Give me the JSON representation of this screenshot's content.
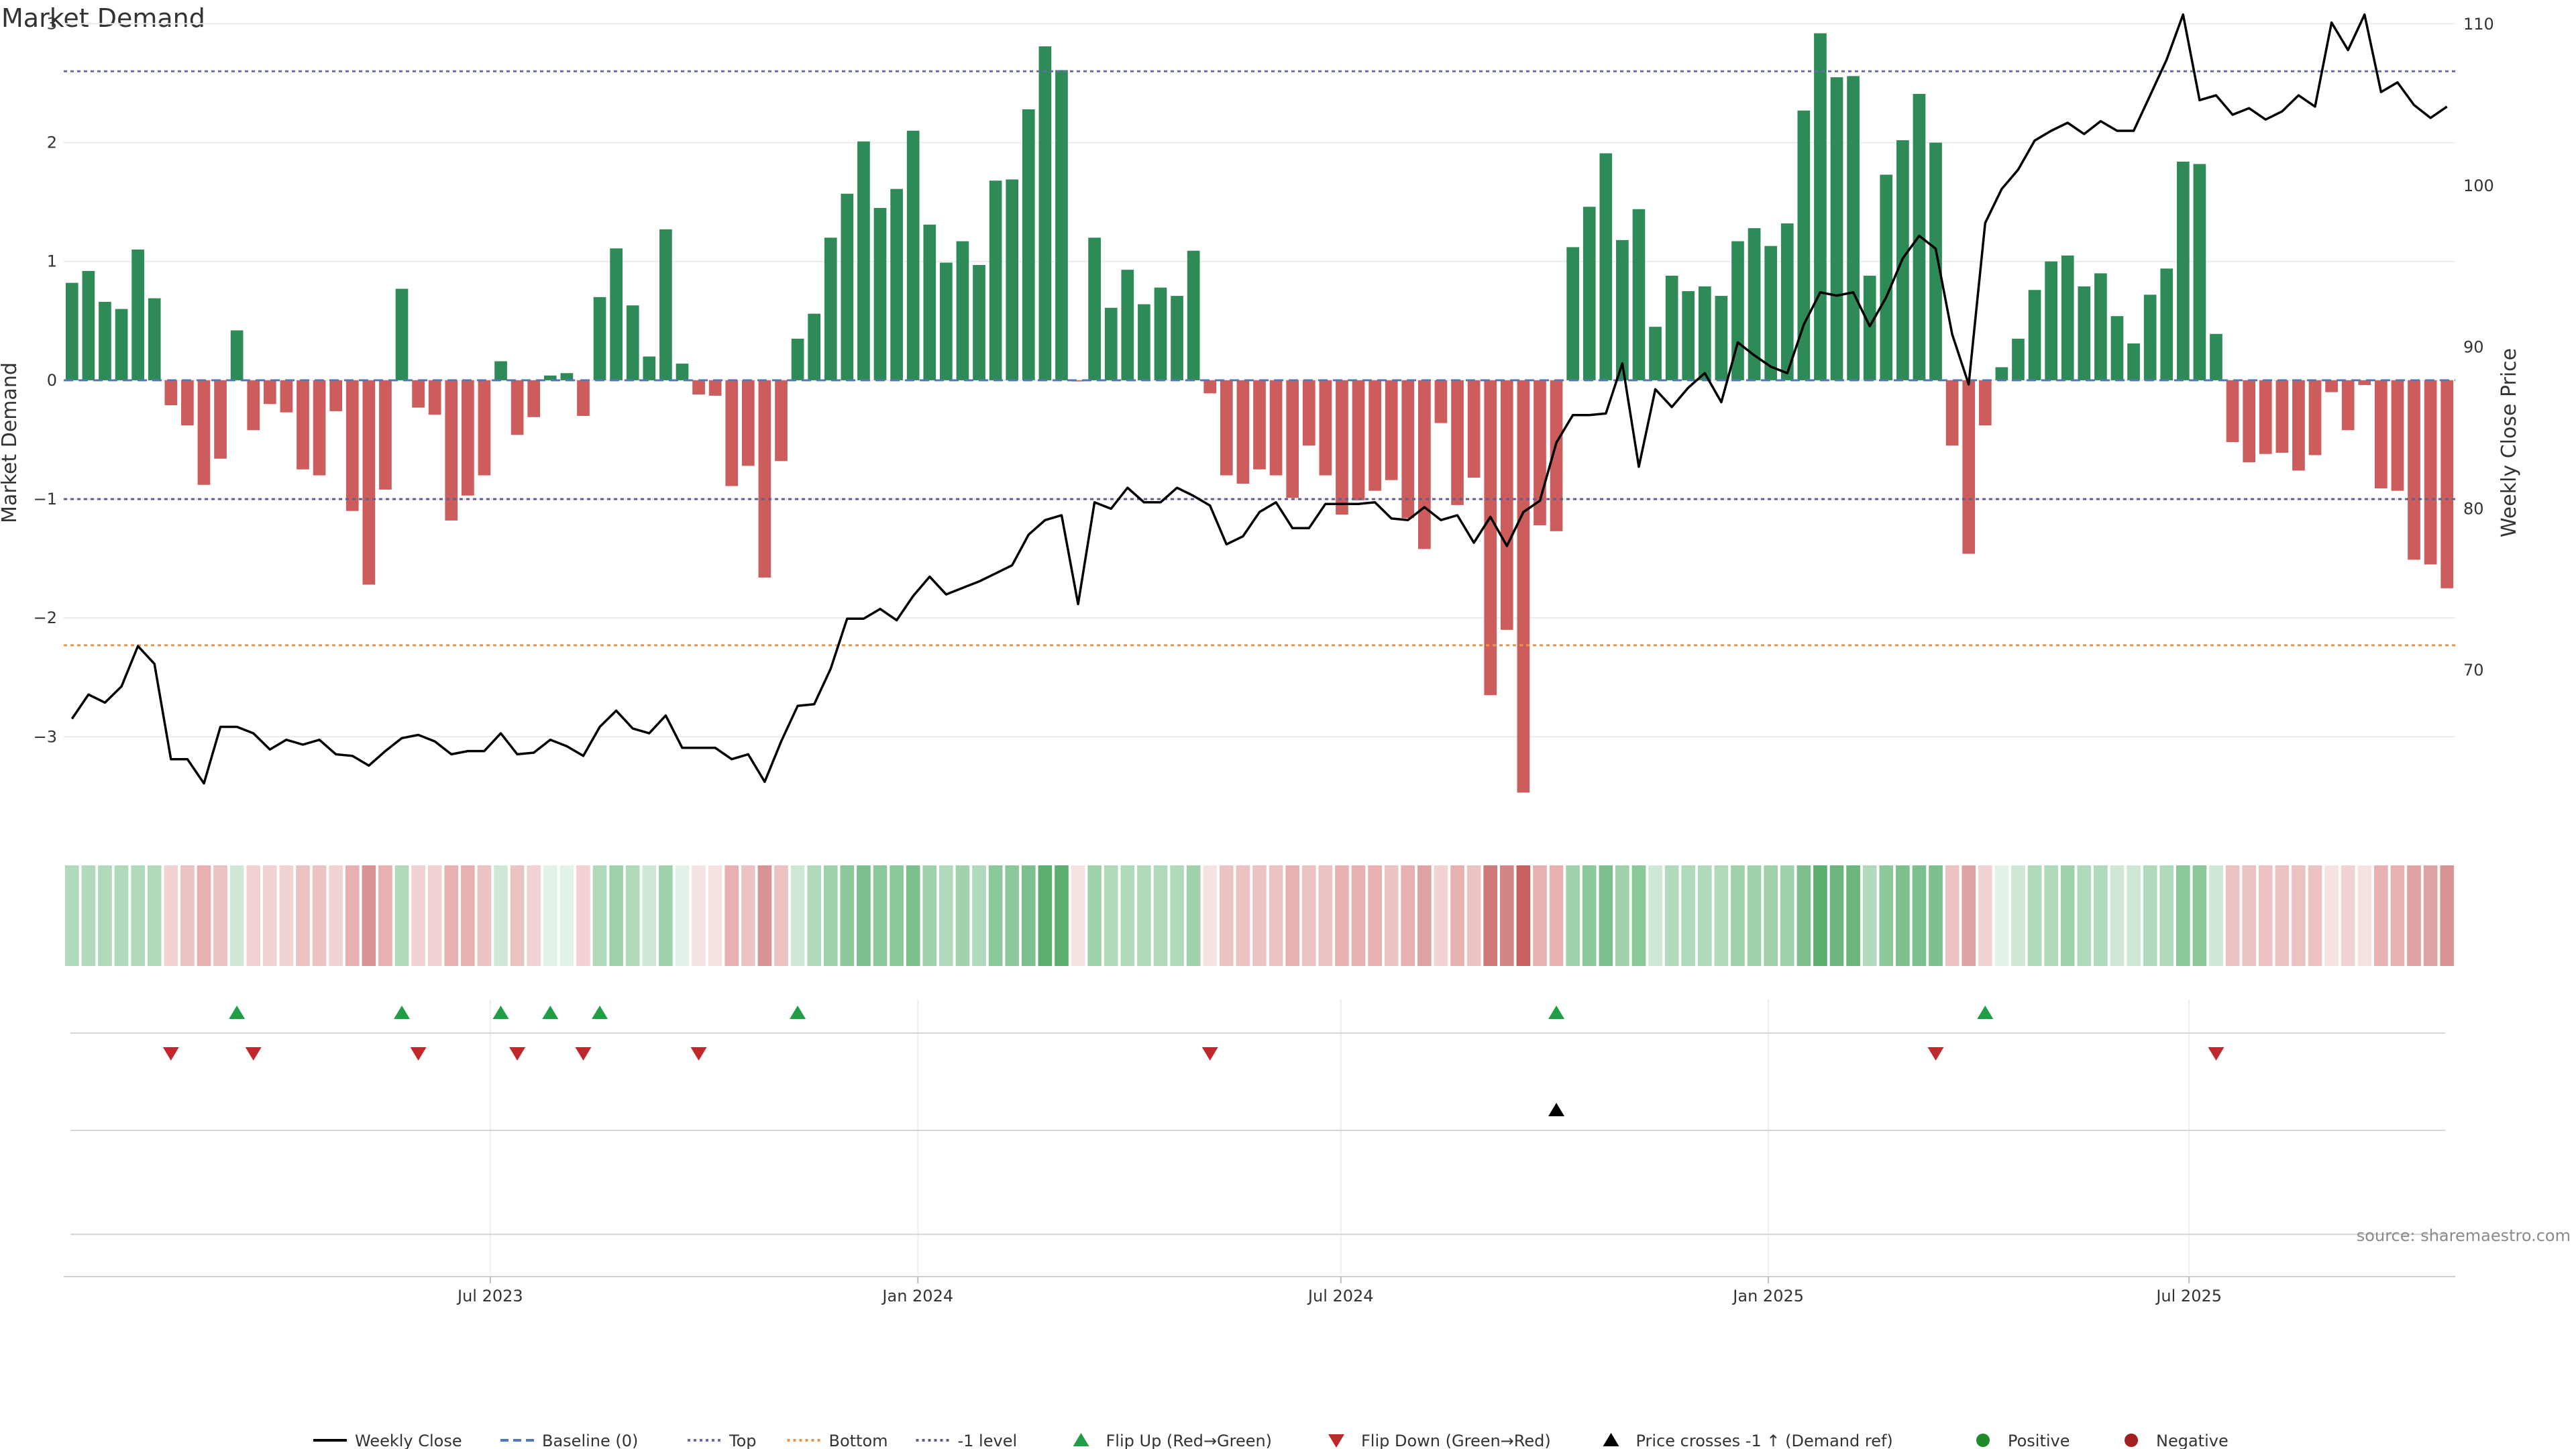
{
  "chart_data": {
    "type": "bar",
    "title": "Market Demand",
    "ylabel": "Market Demand",
    "y2label": "Weekly Close Price",
    "ylim": [
      -3.8,
      3.2
    ],
    "y2lim": [
      60,
      111.5
    ],
    "yticks": [
      3,
      2,
      1,
      0,
      -1,
      -2,
      -3
    ],
    "y2ticks": [
      110,
      100,
      90,
      80,
      70
    ],
    "x_start": "2023-01-02",
    "x_end": "2025-10-20",
    "x_ticks": [
      {
        "date": "2023-07-01",
        "label": "Jul 2023"
      },
      {
        "date": "2024-01-01",
        "label": "Jan 2024"
      },
      {
        "date": "2024-07-01",
        "label": "Jul 2024"
      },
      {
        "date": "2025-01-01",
        "label": "Jan 2025"
      },
      {
        "date": "2025-07-01",
        "label": "Jul 2025"
      }
    ],
    "reference_lines": [
      {
        "name": "Baseline (0)",
        "value": 0,
        "color": "#4f79b8",
        "dash": "dashed"
      },
      {
        "name": "Top",
        "value": 2.6,
        "color": "#6b6bb0",
        "dash": "dotted"
      },
      {
        "name": "Bottom",
        "value": -2.23,
        "color": "#e8954a",
        "dash": "dotted"
      },
      {
        "name": "-1 level",
        "value": -1,
        "color": "#5e5e8f",
        "dash": "dotted"
      }
    ],
    "colors": {
      "positive": "#2e8b57",
      "negative": "#cd5c5c",
      "price_line": "#000000",
      "flip_up": "#1f9e46",
      "flip_down": "#c0282c",
      "price_cross": "#000000",
      "grid": "#ececec"
    },
    "demand": [
      0.82,
      0.92,
      0.66,
      0.6,
      1.1,
      0.69,
      -0.21,
      -0.38,
      -0.88,
      -0.66,
      0.42,
      -0.42,
      -0.2,
      -0.27,
      -0.75,
      -0.8,
      -0.26,
      -1.1,
      -1.72,
      -0.92,
      0.77,
      -0.23,
      -0.29,
      -1.18,
      -0.97,
      -0.8,
      0.16,
      -0.46,
      -0.31,
      0.04,
      0.06,
      -0.3,
      0.7,
      1.11,
      0.63,
      0.2,
      1.27,
      0.14,
      -0.12,
      -0.13,
      -0.89,
      -0.72,
      -1.66,
      -0.68,
      0.35,
      0.56,
      1.2,
      1.57,
      2.01,
      1.45,
      1.61,
      2.1,
      1.31,
      0.99,
      1.17,
      0.97,
      1.68,
      1.69,
      2.28,
      2.81,
      2.61,
      -0.01,
      1.2,
      0.61,
      0.93,
      0.64,
      0.78,
      0.71,
      1.09,
      -0.11,
      -0.8,
      -0.87,
      -0.75,
      -0.8,
      -0.99,
      -0.55,
      -0.8,
      -1.13,
      -1.01,
      -0.93,
      -0.84,
      -1.16,
      -1.42,
      -0.36,
      -1.05,
      -0.82,
      -2.65,
      -2.1,
      -3.47,
      -1.22,
      -1.27,
      1.12,
      1.46,
      1.91,
      1.18,
      1.44,
      0.45,
      0.88,
      0.75,
      0.79,
      0.71,
      1.17,
      1.28,
      1.13,
      1.32,
      2.27,
      2.92,
      2.55,
      2.56,
      0.88,
      1.73,
      2.02,
      2.41,
      2.0,
      -0.55,
      -1.46,
      -0.38,
      0.11,
      0.35,
      0.76,
      1.0,
      1.05,
      0.79,
      0.9,
      0.54,
      0.31,
      0.72,
      0.94,
      1.84,
      1.82,
      0.39,
      -0.52,
      -0.69,
      -0.62,
      -0.61,
      -0.76,
      -0.63,
      -0.1,
      -0.42,
      -0.04,
      -0.91,
      -0.93,
      -1.51,
      -1.55,
      -1.75
    ],
    "price": [
      67.0,
      68.5,
      68.0,
      69.0,
      71.5,
      70.4,
      64.5,
      64.5,
      63.0,
      66.5,
      66.5,
      66.1,
      65.1,
      65.7,
      65.4,
      65.7,
      64.8,
      64.7,
      64.1,
      65.0,
      65.8,
      66.0,
      65.6,
      64.8,
      65.0,
      65.0,
      66.1,
      64.8,
      64.9,
      65.7,
      65.3,
      64.7,
      66.5,
      67.5,
      66.4,
      66.1,
      67.2,
      65.2,
      65.2,
      65.2,
      64.5,
      64.8,
      63.1,
      65.6,
      67.8,
      67.9,
      70.1,
      73.2,
      73.2,
      73.8,
      73.1,
      74.6,
      75.8,
      74.7,
      75.1,
      75.5,
      76.0,
      76.5,
      78.4,
      79.3,
      79.6,
      74.1,
      80.4,
      80.0,
      81.3,
      80.4,
      80.4,
      81.3,
      80.8,
      80.2,
      77.8,
      78.3,
      79.8,
      80.4,
      78.8,
      78.8,
      80.3,
      80.3,
      80.3,
      80.4,
      79.4,
      79.3,
      80.1,
      79.3,
      79.6,
      77.9,
      79.5,
      77.7,
      79.8,
      80.5,
      84.1,
      85.8,
      85.8,
      85.9,
      89.0,
      82.6,
      87.4,
      86.3,
      87.5,
      88.4,
      86.6,
      90.3,
      89.5,
      88.8,
      88.4,
      91.4,
      93.4,
      93.2,
      93.4,
      91.3,
      93.1,
      95.5,
      96.9,
      96.1,
      90.8,
      87.7,
      97.7,
      99.8,
      101.0,
      102.8,
      103.4,
      103.9,
      103.2,
      104.0,
      103.4,
      103.4,
      105.6,
      107.8,
      110.6,
      105.3,
      105.6,
      104.4,
      104.8,
      104.1,
      104.6,
      105.6,
      104.9,
      110.1,
      108.4,
      110.6,
      105.8,
      106.4,
      105.0,
      104.2,
      104.9
    ],
    "strip_colors": [
      "#b1d9bb",
      "#b1d9bb",
      "#b1d9bb",
      "#b1d9bb",
      "#b1d9bb",
      "#b1d9bb",
      "#f0d3d2",
      "#ebc3c2",
      "#e6b1b0",
      "#ebc3c2",
      "#cfe8d5",
      "#f0d3d2",
      "#f0d3d2",
      "#f0d3d2",
      "#ebc3c2",
      "#ebc3c2",
      "#f0d3d2",
      "#e6b1b0",
      "#d99596",
      "#e6b1b0",
      "#b1d9bb",
      "#f0d3d2",
      "#f0d3d2",
      "#e6b1b0",
      "#e6b1b0",
      "#ebc3c2",
      "#cfe8d5",
      "#ebc3c2",
      "#f0d3d2",
      "#e2f2e6",
      "#e2f2e6",
      "#f0d3d2",
      "#b1d9bb",
      "#9fd1ab",
      "#b1d9bb",
      "#cfe8d5",
      "#9fd1ab",
      "#e2f2e6",
      "#f5e3e2",
      "#f5e3e2",
      "#e6b1b0",
      "#ebc3c2",
      "#d99596",
      "#ebc3c2",
      "#cfe8d5",
      "#b1d9bb",
      "#9fd1ab",
      "#8bc89a",
      "#7ebf8e",
      "#8bc89a",
      "#8bc89a",
      "#7ebf8e",
      "#9fd1ab",
      "#b1d9bb",
      "#9fd1ab",
      "#b1d9bb",
      "#8bc89a",
      "#8bc89a",
      "#7ebf8e",
      "#5cae70",
      "#5cae70",
      "#f5e3e2",
      "#9fd1ab",
      "#b1d9bb",
      "#b1d9bb",
      "#b1d9bb",
      "#b1d9bb",
      "#b1d9bb",
      "#9fd1ab",
      "#f5e3e2",
      "#ebc3c2",
      "#ebc3c2",
      "#ebc3c2",
      "#ebc3c2",
      "#e6b1b0",
      "#ebc3c2",
      "#ebc3c2",
      "#e6b1b0",
      "#e6b1b0",
      "#e6b1b0",
      "#ebc3c2",
      "#e6b1b0",
      "#dea3a3",
      "#f0d3d2",
      "#e6b1b0",
      "#ebc3c2",
      "#cf7a7a",
      "#d38484",
      "#c7625f",
      "#e6b1b0",
      "#e6b1b0",
      "#9fd1ab",
      "#8bc89a",
      "#7ebf8e",
      "#9fd1ab",
      "#8bc89a",
      "#cfe8d5",
      "#b1d9bb",
      "#b1d9bb",
      "#b1d9bb",
      "#b1d9bb",
      "#9fd1ab",
      "#9fd1ab",
      "#9fd1ab",
      "#9fd1ab",
      "#7ebf8e",
      "#5cae70",
      "#6cb57f",
      "#6cb57f",
      "#b1d9bb",
      "#8bc89a",
      "#7ebf8e",
      "#7ebf8e",
      "#7ebf8e",
      "#ebc3c2",
      "#dea3a3",
      "#f0d3d2",
      "#e2f2e6",
      "#cfe8d5",
      "#b1d9bb",
      "#b1d9bb",
      "#9fd1ab",
      "#b1d9bb",
      "#b1d9bb",
      "#cfe8d5",
      "#cfe8d5",
      "#b1d9bb",
      "#b1d9bb",
      "#8bc89a",
      "#8bc89a",
      "#cfe8d5",
      "#ebc3c2",
      "#ebc3c2",
      "#ebc3c2",
      "#ebc3c2",
      "#ebc3c2",
      "#ebc3c2",
      "#f5e3e2",
      "#f0d3d2",
      "#f5e3e2",
      "#e6b1b0",
      "#e6b1b0",
      "#dea3a3",
      "#dea3a3",
      "#d99596"
    ],
    "flip_up_idx": [
      10,
      20,
      26,
      29,
      32,
      44,
      90,
      116
    ],
    "flip_down_idx": [
      6,
      11,
      21,
      27,
      31,
      38,
      69,
      113,
      130
    ],
    "price_cross_idx": [
      90
    ],
    "legend": [
      {
        "label": "Weekly Close",
        "kind": "line",
        "color": "#000000"
      },
      {
        "label": "Baseline (0)",
        "kind": "dashed",
        "color": "#4f79b8"
      },
      {
        "label": "Top",
        "kind": "dotted",
        "color": "#6b6bb0"
      },
      {
        "label": "Bottom",
        "kind": "dotted",
        "color": "#e8954a"
      },
      {
        "label": "-1 level",
        "kind": "dotted",
        "color": "#5e5e8f"
      },
      {
        "label": "Flip Up (Red→Green)",
        "kind": "tri-up",
        "color": "#1f9e46"
      },
      {
        "label": "Flip Down (Green→Red)",
        "kind": "tri-down",
        "color": "#c0282c"
      },
      {
        "label": "Price crosses -1 ↑ (Demand ref)",
        "kind": "tri-up",
        "color": "#000000"
      },
      {
        "label": "Positive",
        "kind": "dot",
        "color": "#1f8a2a"
      },
      {
        "label": "Negative",
        "kind": "dot",
        "color": "#a31f1f"
      }
    ],
    "legend_position": "bottom-center",
    "source": "source: sharemaestro.com"
  }
}
